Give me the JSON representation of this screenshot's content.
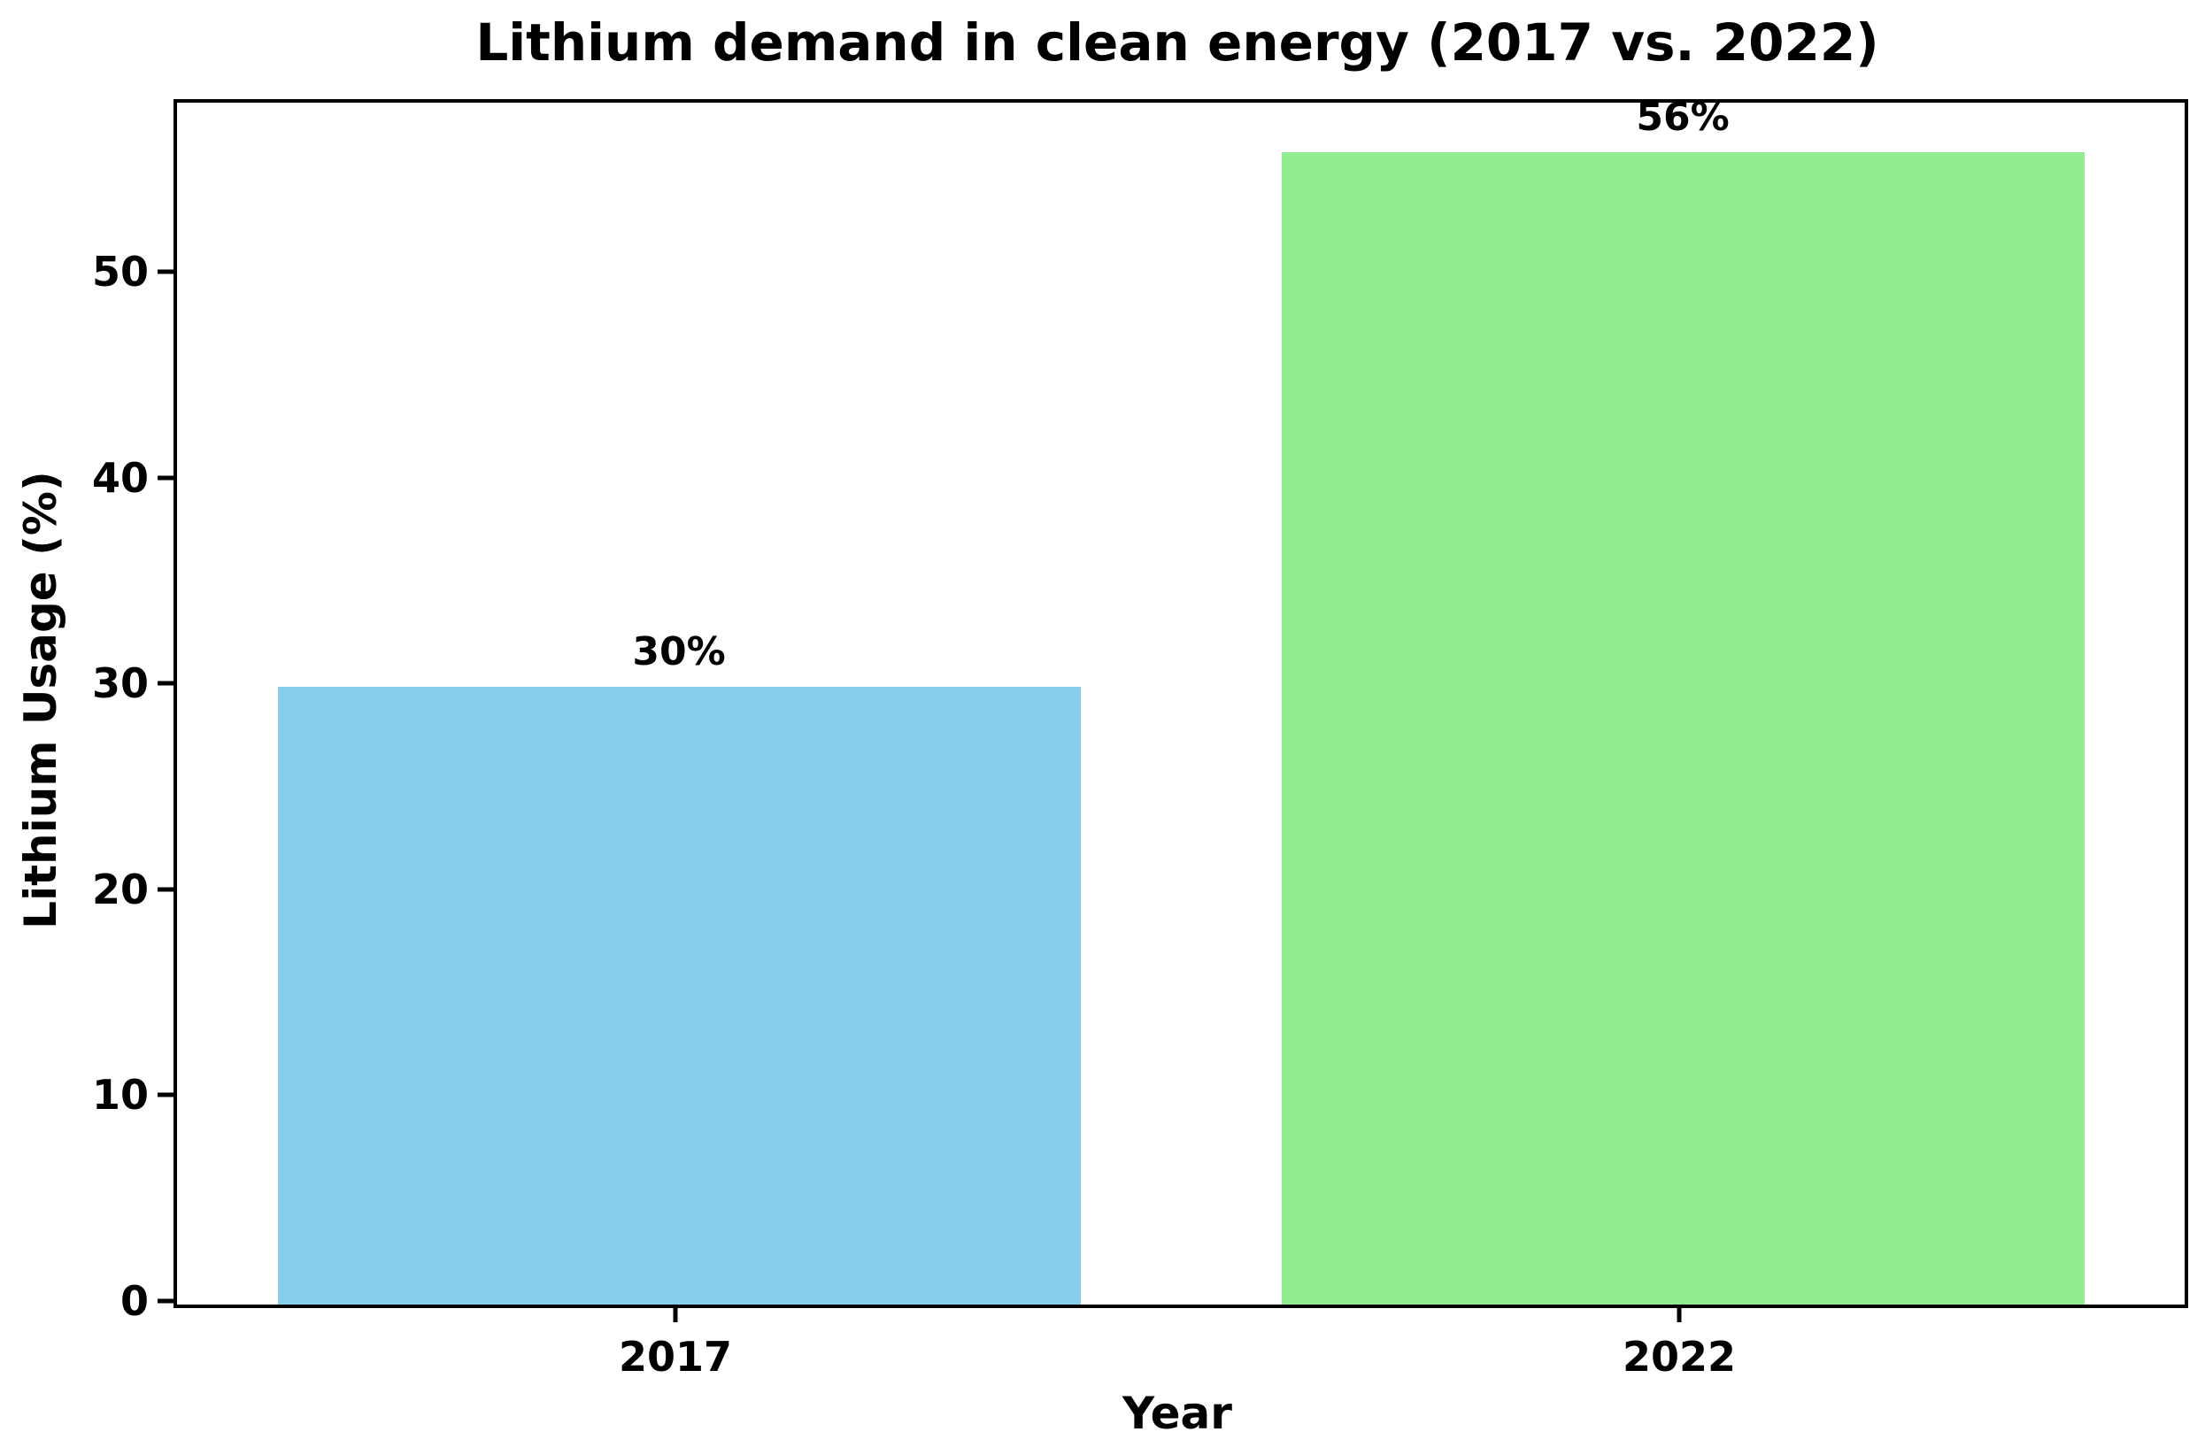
{
  "chart_data": {
    "type": "bar",
    "title": "Lithium demand in clean energy (2017 vs. 2022)",
    "xlabel": "Year",
    "ylabel": "Lithium Usage (%)",
    "categories": [
      "2017",
      "2022"
    ],
    "values": [
      30,
      56
    ],
    "bar_labels": [
      "30%",
      "56%"
    ],
    "bar_colors": [
      "#87CEEB",
      "#90EE90"
    ],
    "yticks": [
      0,
      10,
      20,
      30,
      40,
      50
    ],
    "ylim": [
      0,
      58.4
    ],
    "grid": false,
    "legend": null,
    "background_color": "#ffffff",
    "axis_color": "#000000",
    "text_color": "#000000"
  }
}
